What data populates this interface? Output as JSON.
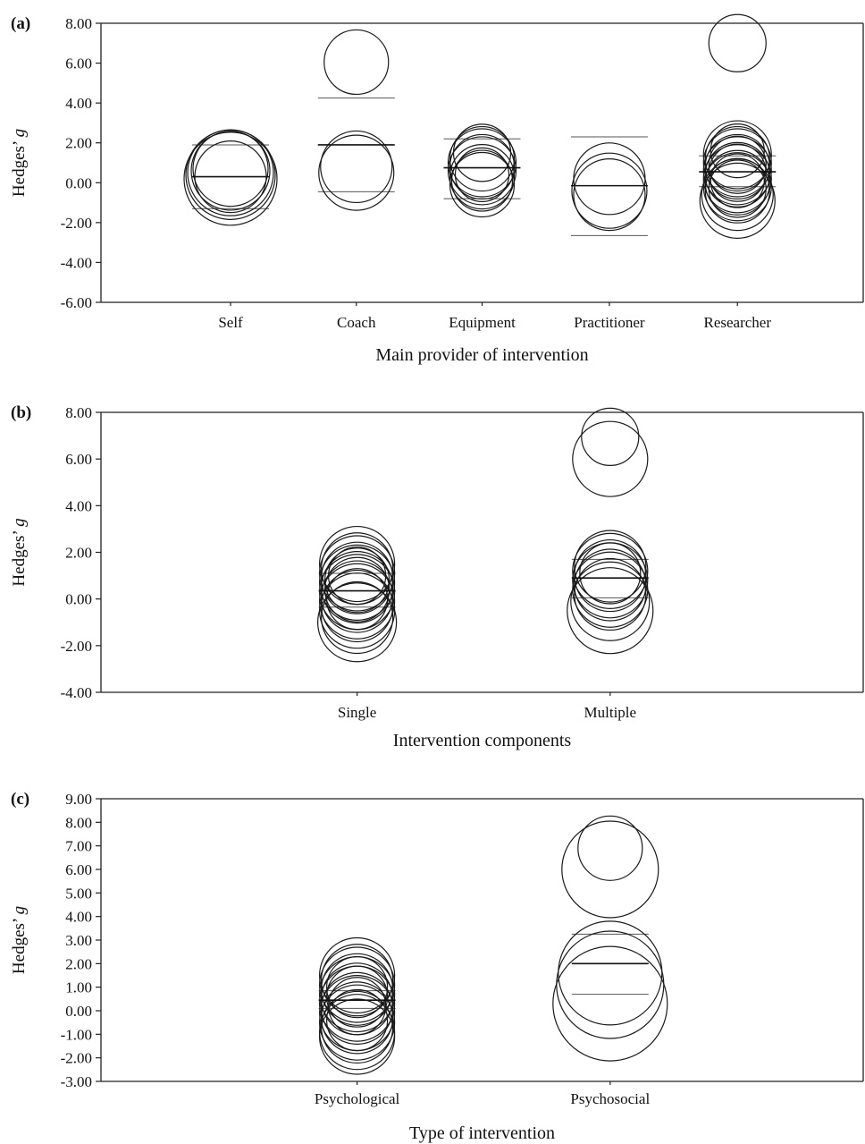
{
  "chart_data": [
    {
      "panel_label": "(a)",
      "type": "scatter",
      "xlabel": "Main provider of intervention",
      "ylabel": "Hedges’",
      "ylabel_italic": "g",
      "ylim": [
        -6,
        8
      ],
      "yticks": [
        "8.00",
        "6.00",
        "4.00",
        "2.00",
        "0.00",
        "-2.00",
        "-4.00",
        "-6.00"
      ],
      "categories": [
        "Self",
        "Coach",
        "Equipment",
        "Practitioner",
        "Researcher"
      ],
      "groups": [
        {
          "category": "Self",
          "mean": 0.3,
          "ci": [
            -1.3,
            1.9
          ],
          "points": [
            [
              0.2,
              1.3
            ],
            [
              0.4,
              1.25
            ],
            [
              0.5,
              1.2
            ],
            [
              0.6,
              1.1
            ],
            [
              0.7,
              1.05
            ],
            [
              0.3,
              1.0
            ]
          ]
        },
        {
          "category": "Coach",
          "mean": 1.9,
          "ci": [
            -0.45,
            4.25
          ],
          "points": [
            [
              6.05,
              0.9
            ],
            [
              0.8,
              1.0
            ],
            [
              0.5,
              1.05
            ]
          ]
        },
        {
          "category": "Equipment",
          "mean": 0.75,
          "ci": [
            -0.8,
            2.2
          ],
          "points": [
            [
              1.2,
              0.9
            ],
            [
              1.0,
              0.95
            ],
            [
              0.8,
              0.9
            ],
            [
              0.6,
              0.95
            ],
            [
              0.3,
              0.9
            ],
            [
              0.1,
              0.85
            ],
            [
              -0.1,
              0.9
            ],
            [
              1.5,
              0.8
            ],
            [
              0.4,
              0.75
            ]
          ]
        },
        {
          "category": "Practitioner",
          "mean": -0.15,
          "ci": [
            -2.65,
            2.3
          ],
          "points": [
            [
              0.2,
              1.0
            ],
            [
              -0.4,
              1.05
            ],
            [
              -0.6,
              1.0
            ]
          ]
        },
        {
          "category": "Researcher",
          "mean": 0.55,
          "ci": [
            -0.2,
            1.35
          ],
          "points": [
            [
              7.0,
              0.8
            ],
            [
              1.4,
              0.95
            ],
            [
              1.2,
              0.9
            ],
            [
              1.0,
              0.95
            ],
            [
              0.8,
              0.9
            ],
            [
              0.6,
              0.95
            ],
            [
              0.4,
              0.9
            ],
            [
              0.2,
              0.95
            ],
            [
              0.0,
              0.9
            ],
            [
              -0.2,
              0.95
            ],
            [
              -0.4,
              0.9
            ],
            [
              -0.6,
              1.0
            ],
            [
              -0.9,
              1.05
            ],
            [
              0.9,
              0.8
            ],
            [
              0.5,
              0.8
            ],
            [
              0.1,
              0.75
            ],
            [
              -0.3,
              0.8
            ],
            [
              1.6,
              0.75
            ]
          ]
        }
      ]
    },
    {
      "panel_label": "(b)",
      "type": "scatter",
      "xlabel": "Intervention components",
      "ylabel": "Hedges’",
      "ylabel_italic": "g",
      "ylim": [
        -4,
        8
      ],
      "yticks": [
        "8.00",
        "6.00",
        "4.00",
        "2.00",
        "0.00",
        "-2.00",
        "-4.00"
      ],
      "categories": [
        "Single",
        "Multiple"
      ],
      "groups": [
        {
          "category": "Single",
          "mean": 0.35,
          "ci": [
            -0.35,
            1.1
          ],
          "points": [
            [
              1.5,
              1.05
            ],
            [
              1.3,
              1.0
            ],
            [
              1.1,
              1.05
            ],
            [
              0.9,
              1.0
            ],
            [
              0.7,
              1.05
            ],
            [
              0.5,
              1.0
            ],
            [
              0.3,
              1.05
            ],
            [
              0.1,
              1.0
            ],
            [
              -0.1,
              1.05
            ],
            [
              -0.3,
              1.0
            ],
            [
              -0.5,
              1.05
            ],
            [
              -0.8,
              1.0
            ],
            [
              -1.0,
              1.1
            ],
            [
              0.8,
              0.9
            ],
            [
              0.4,
              0.9
            ],
            [
              0.0,
              0.85
            ],
            [
              1.0,
              0.8
            ]
          ]
        },
        {
          "category": "Multiple",
          "mean": 0.9,
          "ci": [
            0.05,
            1.7
          ],
          "points": [
            [
              6.95,
              0.8
            ],
            [
              6.0,
              1.05
            ],
            [
              1.4,
              1.0
            ],
            [
              1.2,
              1.05
            ],
            [
              1.0,
              1.0
            ],
            [
              0.8,
              1.05
            ],
            [
              0.6,
              1.0
            ],
            [
              0.4,
              1.05
            ],
            [
              0.2,
              1.0
            ],
            [
              -0.1,
              1.1
            ],
            [
              -0.5,
              1.2
            ],
            [
              1.1,
              0.85
            ]
          ]
        }
      ]
    },
    {
      "panel_label": "(c)",
      "type": "scatter",
      "xlabel": "Type of intervention",
      "ylabel": "Hedges’",
      "ylabel_italic": "g",
      "ylim": [
        -3,
        9
      ],
      "yticks": [
        "9.00",
        "8.00",
        "7.00",
        "6.00",
        "5.00",
        "4.00",
        "3.00",
        "2.00",
        "1.00",
        "0.00",
        "-1.00",
        "-2.00",
        "-3.00"
      ],
      "categories": [
        "Psychological",
        "Psychosocial"
      ],
      "groups": [
        {
          "category": "Psychological",
          "mean": 0.45,
          "ci": [
            0.1,
            0.85
          ],
          "points": [
            [
              1.5,
              1.05
            ],
            [
              1.3,
              1.0
            ],
            [
              1.1,
              1.05
            ],
            [
              0.9,
              1.0
            ],
            [
              0.7,
              1.05
            ],
            [
              0.5,
              1.0
            ],
            [
              0.3,
              1.05
            ],
            [
              0.1,
              1.0
            ],
            [
              -0.1,
              1.05
            ],
            [
              -0.3,
              1.0
            ],
            [
              -0.5,
              1.05
            ],
            [
              -0.7,
              1.0
            ],
            [
              -0.9,
              1.05
            ],
            [
              -1.1,
              1.05
            ],
            [
              1.0,
              0.85
            ],
            [
              0.6,
              0.85
            ],
            [
              0.2,
              0.8
            ],
            [
              -0.4,
              0.85
            ]
          ]
        },
        {
          "category": "Psychosocial",
          "mean": 2.0,
          "ci": [
            0.7,
            3.25
          ],
          "points": [
            [
              6.9,
              0.9
            ],
            [
              6.0,
              1.35
            ],
            [
              1.6,
              1.45
            ],
            [
              1.1,
              1.5
            ],
            [
              0.3,
              1.6
            ]
          ]
        }
      ]
    }
  ]
}
